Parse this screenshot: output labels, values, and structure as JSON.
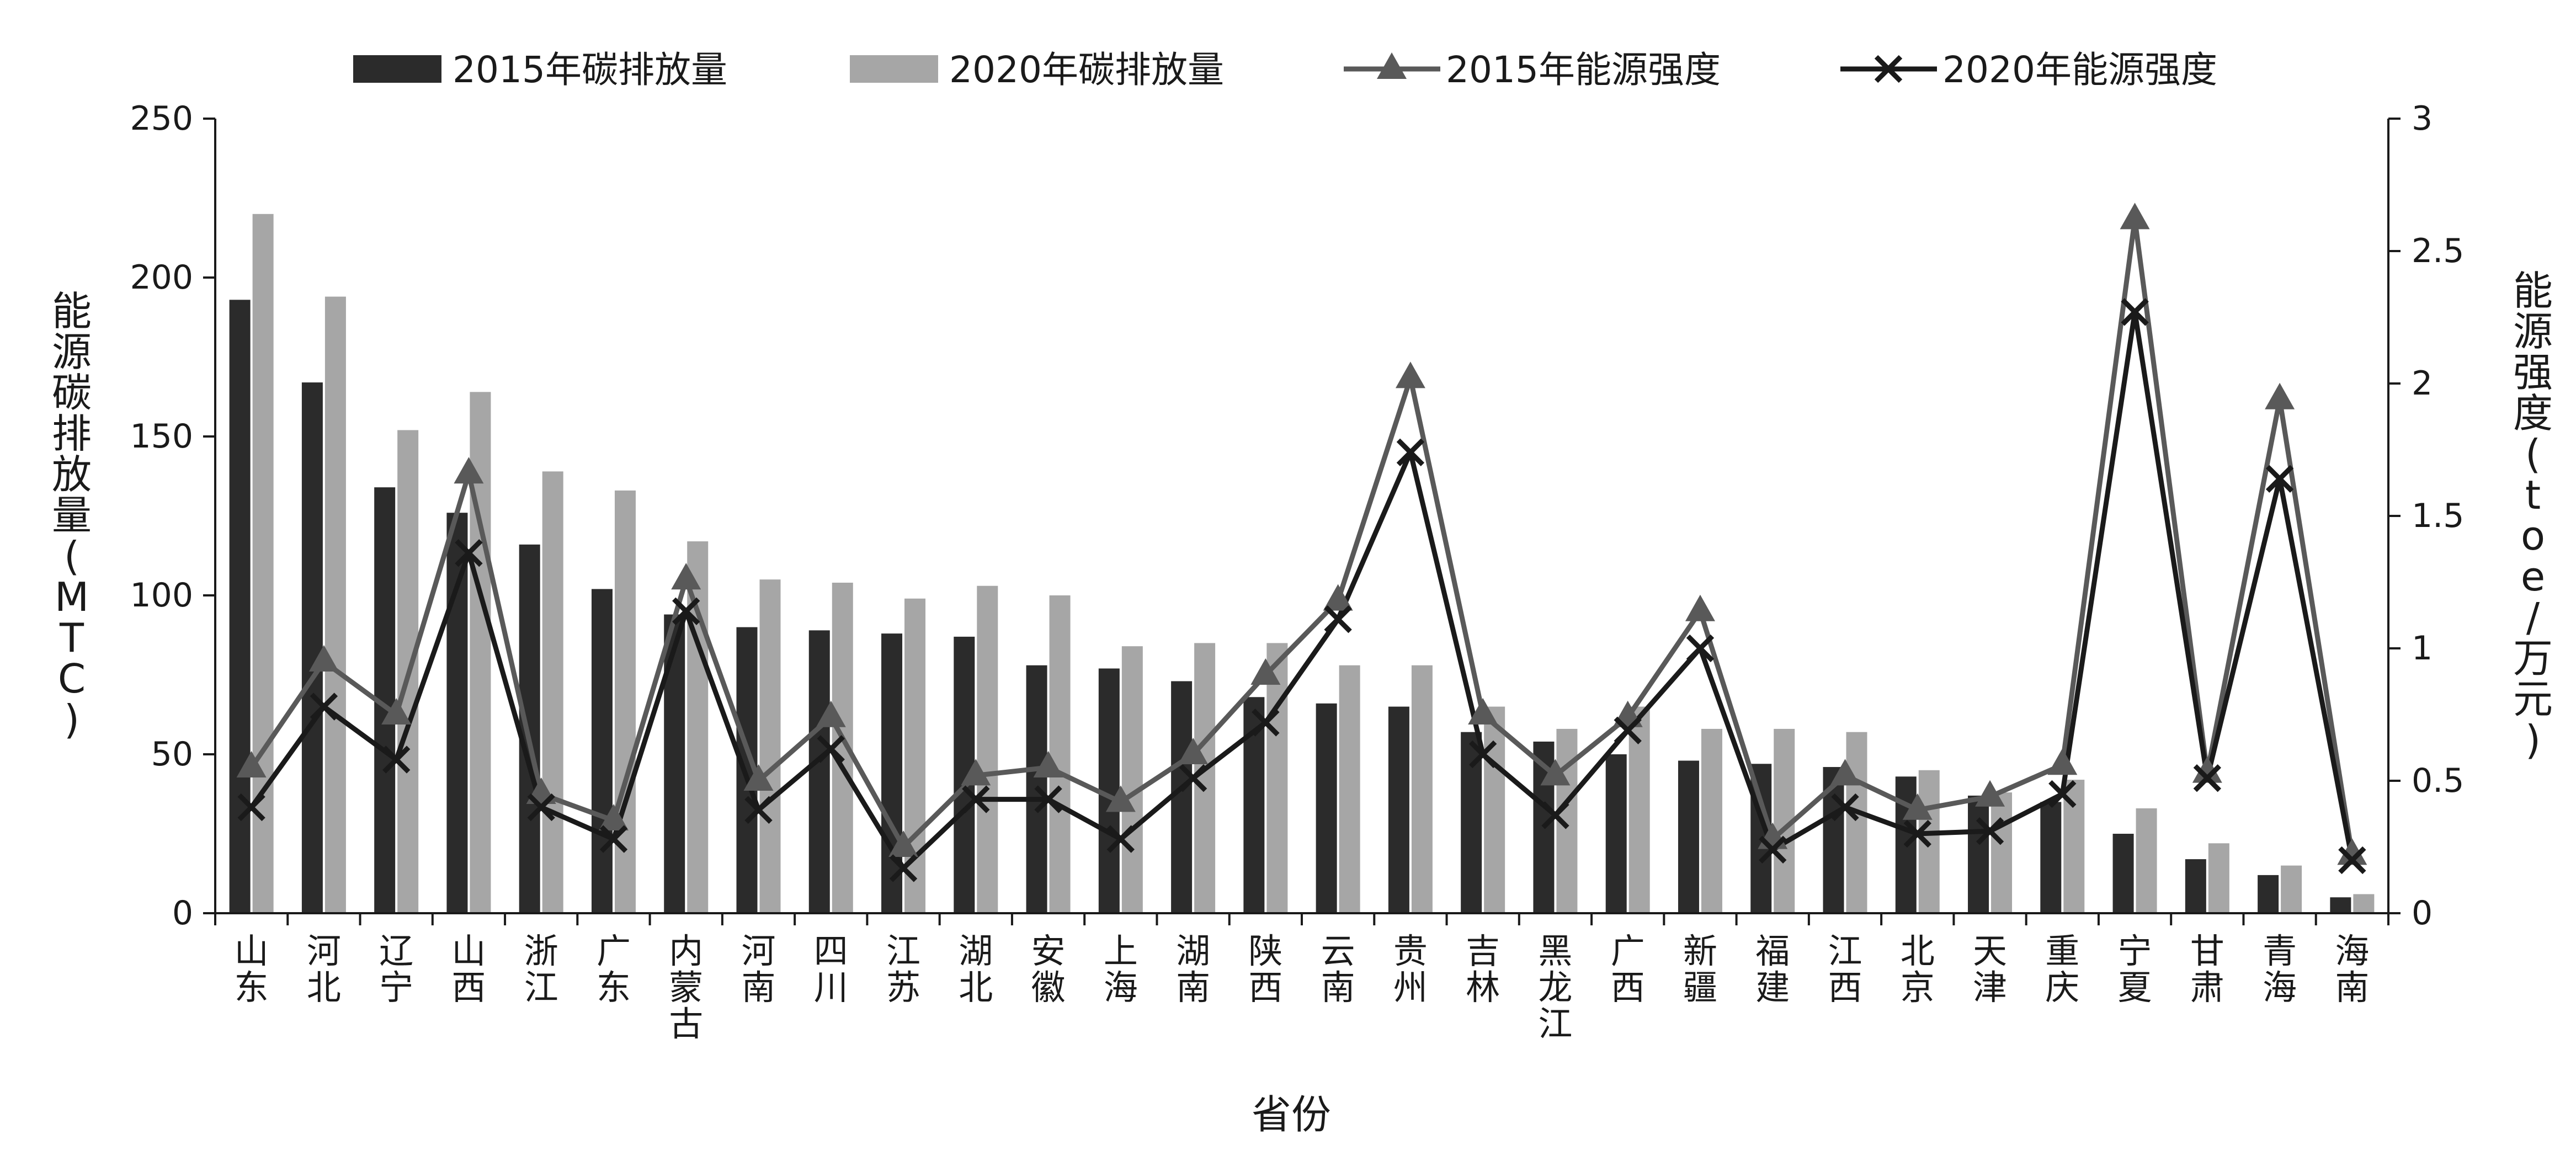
{
  "chart_data": {
    "type": "bar",
    "categories": [
      "山东",
      "河北",
      "辽宁",
      "山西",
      "浙江",
      "广东",
      "内蒙古",
      "河南",
      "四川",
      "江苏",
      "湖北",
      "安徽",
      "上海",
      "湖南",
      "陕西",
      "云南",
      "贵州",
      "吉林",
      "黑龙江",
      "广西",
      "新疆",
      "福建",
      "江西",
      "北京",
      "天津",
      "重庆",
      "宁夏",
      "甘肃",
      "青海",
      "海南"
    ],
    "series": [
      {
        "name": "2015年碳排放量",
        "kind": "bar",
        "axis": "left",
        "color": "#2b2b2b",
        "values": [
          193,
          167,
          134,
          126,
          116,
          102,
          94,
          90,
          89,
          88,
          87,
          78,
          77,
          73,
          68,
          66,
          65,
          57,
          54,
          50,
          48,
          47,
          46,
          43,
          37,
          35,
          25,
          17,
          12,
          5
        ]
      },
      {
        "name": "2020年碳排放量",
        "kind": "bar",
        "axis": "left",
        "color": "#a6a6a6",
        "values": [
          220,
          194,
          152,
          164,
          139,
          133,
          117,
          105,
          104,
          99,
          103,
          100,
          84,
          85,
          85,
          78,
          78,
          65,
          58,
          65,
          58,
          58,
          57,
          45,
          38,
          42,
          33,
          22,
          15,
          6
        ]
      },
      {
        "name": "2015年能源强度",
        "kind": "line",
        "axis": "right",
        "color": "#595959",
        "marker": "triangle",
        "values": [
          0.55,
          0.95,
          0.75,
          1.66,
          0.45,
          0.35,
          1.26,
          0.5,
          0.74,
          0.25,
          0.52,
          0.55,
          0.42,
          0.6,
          0.9,
          1.18,
          2.02,
          0.75,
          0.52,
          0.74,
          1.14,
          0.28,
          0.52,
          0.39,
          0.44,
          0.56,
          2.62,
          0.53,
          1.94,
          0.22
        ]
      },
      {
        "name": "2020年能源强度",
        "kind": "line",
        "axis": "right",
        "color": "#1a1a1a",
        "marker": "x",
        "values": [
          0.4,
          0.78,
          0.58,
          1.36,
          0.4,
          0.28,
          1.14,
          0.39,
          0.62,
          0.17,
          0.43,
          0.43,
          0.28,
          0.51,
          0.72,
          1.11,
          1.74,
          0.6,
          0.37,
          0.69,
          1.0,
          0.24,
          0.4,
          0.3,
          0.31,
          0.45,
          2.27,
          0.51,
          1.64,
          0.2
        ]
      }
    ],
    "xlabel": "省份",
    "ylabel_left": "能源碳排放量(MTC)",
    "ylabel_right": "能源强度(toe/万元)",
    "ylim_left": [
      0,
      250
    ],
    "ylim_right": [
      0,
      3
    ],
    "yticks_left": [
      "0",
      "50",
      "100",
      "150",
      "200",
      "250"
    ],
    "yticks_right": [
      "0",
      "0.5",
      "1",
      "1.5",
      "2",
      "2.5",
      "3"
    ],
    "grid": false,
    "legend_position": "top"
  }
}
